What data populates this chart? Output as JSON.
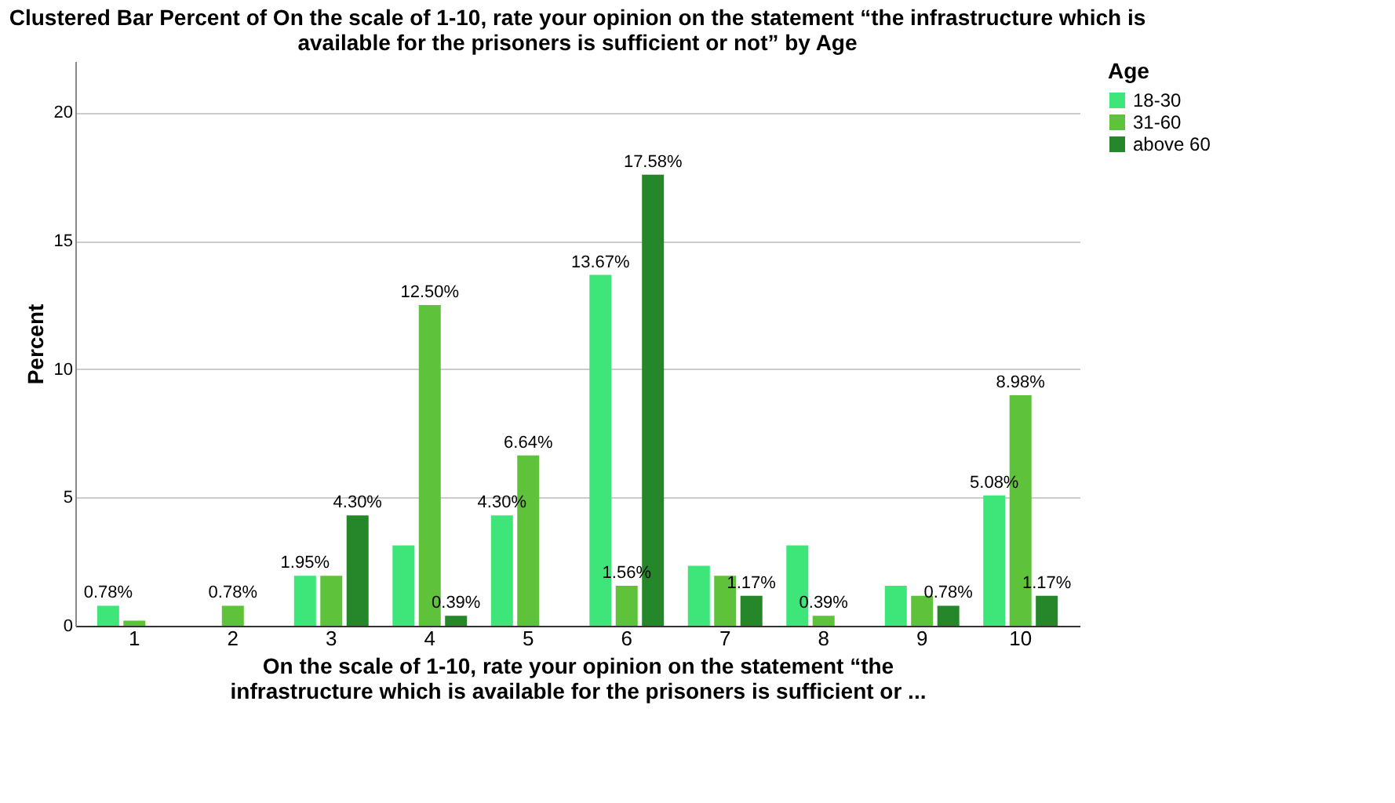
{
  "chart_data": {
    "type": "bar",
    "title": [
      "Clustered Bar Percent of On the scale of 1-10, rate your opinion on the statement “the infrastructure which is",
      "available for the prisoners is sufficient or not” by Age"
    ],
    "xlabel": [
      "On the scale of 1-10, rate your opinion on the statement “the",
      "infrastructure which is available for the prisoners is sufficient or ..."
    ],
    "ylabel": "Percent",
    "legend_title": "Age",
    "legend": "top right",
    "grid": "y",
    "categories": [
      "1",
      "2",
      "3",
      "4",
      "5",
      "6",
      "7",
      "8",
      "9",
      "10"
    ],
    "ylim": [
      0,
      22
    ],
    "yticks": [
      0,
      5,
      10,
      15,
      20
    ],
    "series": [
      {
        "name": "18-30",
        "color": "#3ee67a",
        "values": [
          0.78,
          null,
          1.95,
          3.13,
          4.3,
          13.67,
          2.34,
          3.13,
          1.56,
          5.08
        ],
        "value_labels": [
          "0.78%",
          null,
          "1.95%",
          null,
          "4.30%",
          "13.67%",
          null,
          null,
          null,
          "5.08%"
        ]
      },
      {
        "name": "31-60",
        "color": "#5ec23a",
        "values": [
          0.2,
          0.78,
          1.95,
          12.5,
          6.64,
          1.56,
          1.95,
          0.39,
          1.17,
          8.98
        ],
        "value_labels": [
          null,
          "0.78%",
          null,
          "12.50%",
          "6.64%",
          "1.56%",
          null,
          "0.39%",
          null,
          "8.98%"
        ]
      },
      {
        "name": "above 60",
        "color": "#26862a",
        "values": [
          null,
          null,
          4.3,
          0.39,
          null,
          17.58,
          1.17,
          null,
          0.78,
          1.17
        ],
        "value_labels": [
          null,
          null,
          "4.30%",
          "0.39%",
          null,
          "17.58%",
          "1.17%",
          null,
          "0.78%",
          "1.17%"
        ]
      }
    ]
  }
}
